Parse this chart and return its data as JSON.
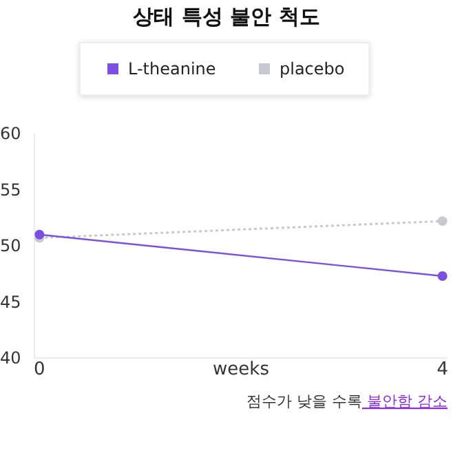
{
  "chart_data": {
    "type": "line",
    "title": "상태 특성 불안 척도",
    "xlabel": "weeks",
    "x": [
      0,
      4
    ],
    "series": [
      {
        "name": "L-theanine",
        "color": "#7b4fe0",
        "values": [
          51.0,
          47.3
        ],
        "line_style": "solid"
      },
      {
        "name": "placebo",
        "color": "#c6c9d0",
        "values": [
          50.7,
          52.2
        ],
        "line_style": "dotted"
      }
    ],
    "xlim": [
      -0.05,
      4.05
    ],
    "xticks": [
      0,
      4
    ],
    "ylim": [
      40,
      60
    ],
    "yticks": [
      40,
      45,
      50,
      55,
      60
    ],
    "grid": false,
    "legend": "top",
    "marker": "circle",
    "annotations": [
      "점수가 낮을 수록",
      "불안함 감소"
    ]
  }
}
